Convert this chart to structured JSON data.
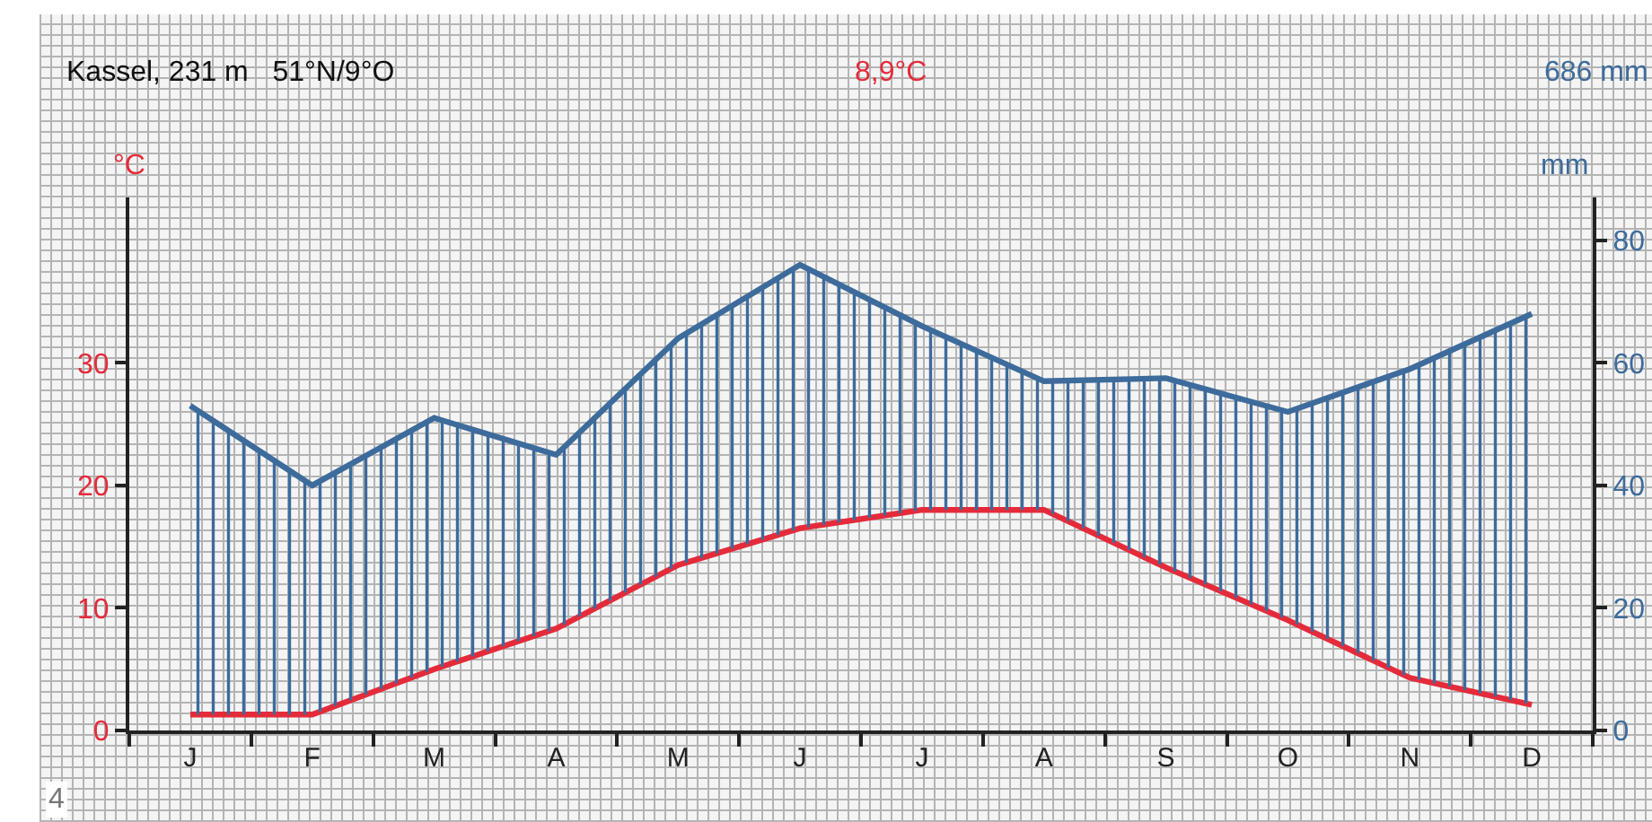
{
  "chart_data": {
    "type": "line",
    "title": "Kassel, 231 m   51°N/9°O",
    "ylabel": "°C",
    "y2label": "mm",
    "annotations": [
      "8,9°C",
      "686 mm",
      "4"
    ],
    "categories": [
      "J",
      "F",
      "M",
      "A",
      "M",
      "J",
      "J",
      "A",
      "S",
      "O",
      "N",
      "D"
    ],
    "series": [
      {
        "color": "#e52b3a",
        "values": [
          1.3,
          1.3,
          5,
          8.3,
          13.5,
          16.5,
          18,
          18,
          13.3,
          9,
          4.3,
          2.1
        ]
      },
      {
        "type": "area",
        "axis": "y2",
        "color": "#3d6b9c",
        "values": [
          53,
          40,
          51,
          45,
          64,
          76,
          66,
          57,
          57.5,
          52,
          59,
          68
        ]
      }
    ],
    "ylim": [
      0,
      43.5
    ],
    "yticks": [
      0,
      10,
      20,
      30
    ],
    "y2lim": [
      0,
      87
    ],
    "y2ticks": [
      0,
      20,
      40,
      60,
      80
    ],
    "grid": false,
    "marker": "none",
    "line_style": "solid"
  }
}
